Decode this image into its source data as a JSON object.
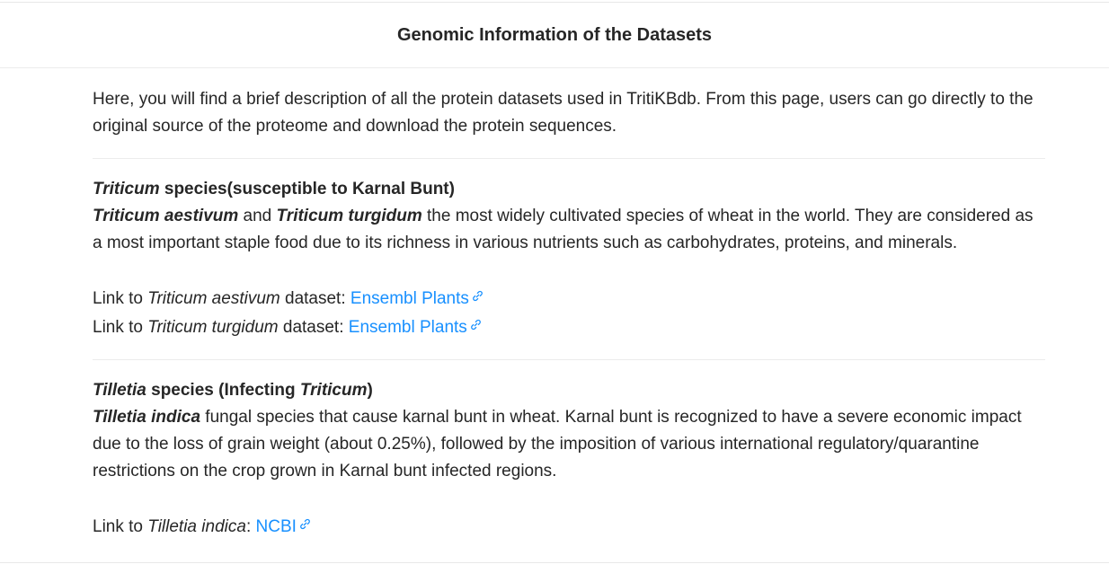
{
  "header": {
    "title": "Genomic Information of the Datasets"
  },
  "intro": "Here, you will find a brief description of all the protein datasets used in TritiKBdb. From this page, users can go directly to the original source of the proteome and download the protein sequences.",
  "section1": {
    "title_italic": "Triticum",
    "title_rest": " species(susceptible to Karnal Bunt)",
    "desc_sp1": "Triticum aestivum",
    "desc_and": " and ",
    "desc_sp2": "Triticum turgidum",
    "desc_rest": " the most widely cultivated species of wheat in the world. They are considered as a most important staple food due to its richness in various nutrients such as carbohydrates, proteins, and minerals.",
    "links": [
      {
        "prefix": "Link to ",
        "species": "Triticum aestivum",
        "suffix": " dataset: ",
        "label": "Ensembl Plants",
        "icon": "external-link-icon"
      },
      {
        "prefix": "Link to ",
        "species": "Triticum turgidum",
        "suffix": " dataset: ",
        "label": "Ensembl Plants",
        "icon": "external-link-icon"
      }
    ]
  },
  "section2": {
    "title_italic": "Tilletia",
    "title_mid": " species (Infecting ",
    "title_italic2": "Triticum",
    "title_end": ")",
    "desc_sp": "Tilletia indica",
    "desc_rest": " fungal species that cause karnal bunt in wheat. Karnal bunt is recognized to have a severe economic impact due to the loss of grain weight (about 0.25%), followed by the imposition of various international regulatory/quarantine restrictions on the crop grown in Karnal bunt infected regions.",
    "link": {
      "prefix": "Link to ",
      "species": "Tilletia indica",
      "suffix": ": ",
      "label": "NCBI",
      "icon": "external-link-icon"
    }
  },
  "colors": {
    "link": "#1890ff",
    "text": "#262626",
    "divider": "#ececec"
  }
}
